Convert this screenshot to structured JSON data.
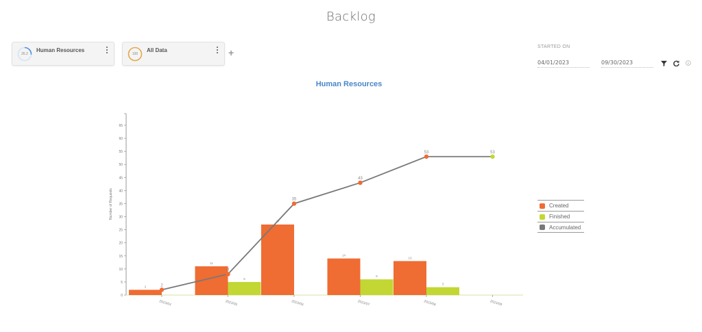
{
  "page": {
    "title": "Backlog"
  },
  "cards": [
    {
      "label": "Human Resources",
      "value": "26.2",
      "ring_color": "#4a90d9",
      "ring_percent": 26.2
    },
    {
      "label": "All Data",
      "value": "100",
      "ring_color": "#e3a84a",
      "ring_percent": 100
    }
  ],
  "filters": {
    "started_on_label": "STARTED ON",
    "start_date": "04/01/2023",
    "end_date": "09/30/2023",
    "icons": [
      "filter-icon",
      "refresh-icon",
      "info-icon"
    ]
  },
  "colors": {
    "created": "#ef6c33",
    "finished": "#c2d733",
    "accumulated": "#787878",
    "title": "#4a86c8"
  },
  "chart_data": {
    "type": "bar",
    "title": "Human Resources",
    "xlabel": "",
    "ylabel": "Number of Requests",
    "ylim": [
      0,
      65
    ],
    "yticks": [
      0,
      5,
      10,
      15,
      20,
      25,
      30,
      35,
      40,
      45,
      50,
      55,
      60,
      65
    ],
    "categories": [
      "2023/04",
      "2023/05",
      "2023/06",
      "2023/07",
      "2023/08",
      "2023/09"
    ],
    "series": [
      {
        "name": "Created",
        "type": "bar",
        "values": [
          2,
          11,
          27,
          14,
          13,
          0
        ]
      },
      {
        "name": "Finished",
        "type": "bar",
        "values": [
          0,
          5,
          0,
          6,
          3,
          0
        ]
      },
      {
        "name": "Accumulated",
        "type": "line",
        "values": [
          2,
          8,
          35,
          43,
          53,
          53
        ]
      }
    ],
    "legend_position": "right",
    "grid": false
  }
}
